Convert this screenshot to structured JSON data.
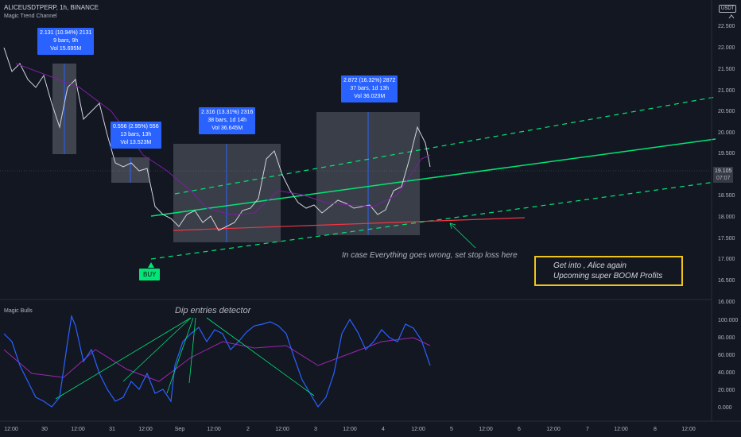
{
  "header": {
    "symbol_line": "ALICEUSDTPERP, 1h, BINANCE",
    "indicator_label": "Magic Trend Channel"
  },
  "lower_pane": {
    "label": "Magic Bulls",
    "annotation": "Dip entries detector"
  },
  "currency": "USDT",
  "price_axis": [
    "22.500",
    "22.000",
    "21.500",
    "21.000",
    "20.500",
    "20.000",
    "19.500",
    "18.500",
    "18.000",
    "17.500",
    "17.000",
    "16.500",
    "16.000"
  ],
  "osc_axis": [
    "100.000",
    "80.000",
    "60.000",
    "40.000",
    "20.000",
    "0.000"
  ],
  "last_price": {
    "value": "19.105",
    "countdown": "07:07"
  },
  "time_axis": [
    "12:00",
    "30",
    "12:00",
    "31",
    "12:00",
    "Sep",
    "12:00",
    "2",
    "12:00",
    "3",
    "12:00",
    "4",
    "12:00",
    "5",
    "12:00",
    "6",
    "12:00",
    "7",
    "12:00",
    "8",
    "12:00"
  ],
  "measures": [
    {
      "line1": "2.131 (10.94%) 2131",
      "line2": "9 bars, 9h",
      "line3": "Vol 15.695M"
    },
    {
      "line1": "0.556 (2.95%) 556",
      "line2": "13 bars, 13h",
      "line3": "Vol 13.523M"
    },
    {
      "line1": "2.316 (13.31%) 2316",
      "line2": "38 bars, 1d 14h",
      "line3": "Vol 36.645M"
    },
    {
      "line1": "2.872 (16.32%) 2872",
      "line2": "37 bars, 1d 13h",
      "line3": "Vol 36.023M"
    }
  ],
  "buy_label": "BUY",
  "stop_note": "In case Everything goes wrong, set stop loss here",
  "profit_box": {
    "line1": "Get into , Alice again",
    "line2": "Upcoming super BOOM Profits"
  },
  "colors": {
    "background": "#131722",
    "measure": "#2962ff",
    "trend": "#00e676",
    "stop": "#f23645",
    "profit_border": "#f0c419",
    "osc_line": "#2962ff",
    "osc_ma": "#9c27b0"
  }
}
